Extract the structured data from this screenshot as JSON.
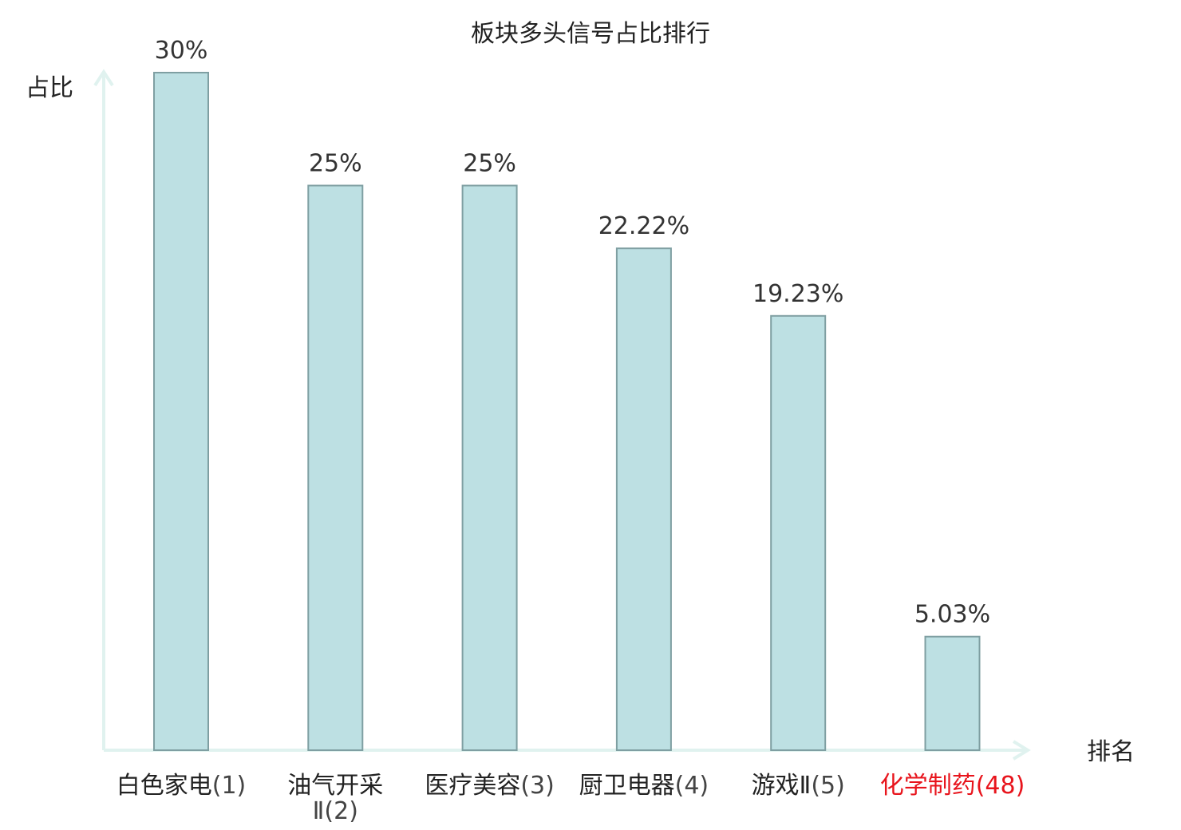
{
  "chart_data": {
    "type": "bar",
    "title": "板块多头信号占比排行",
    "ylabel": "占比",
    "xlabel": "排名",
    "ylim": [
      0,
      30
    ],
    "grid": false,
    "categories": [
      {
        "name": "白色家电",
        "rank": "(1)",
        "highlight": false
      },
      {
        "name": "油气开采",
        "name2": "Ⅱ",
        "rank": "(2)",
        "highlight": false
      },
      {
        "name": "医疗美容",
        "rank": "(3)",
        "highlight": false
      },
      {
        "name": "厨卫电器",
        "rank": "(4)",
        "highlight": false
      },
      {
        "name": "游戏Ⅱ",
        "rank": "(5)",
        "highlight": false
      },
      {
        "name": "化学制药",
        "rank": "(48)",
        "highlight": true
      }
    ],
    "values": [
      30,
      25,
      25,
      22.22,
      19.23,
      5.03
    ],
    "value_labels": [
      "30%",
      "25%",
      "25%",
      "22.22%",
      "19.23%",
      "5.03%"
    ],
    "colors": {
      "bar_fill": "#bde0e3",
      "bar_stroke": "#7f9fa2",
      "axis": "#e0f2ef",
      "highlight_text": "#e8141c"
    }
  }
}
